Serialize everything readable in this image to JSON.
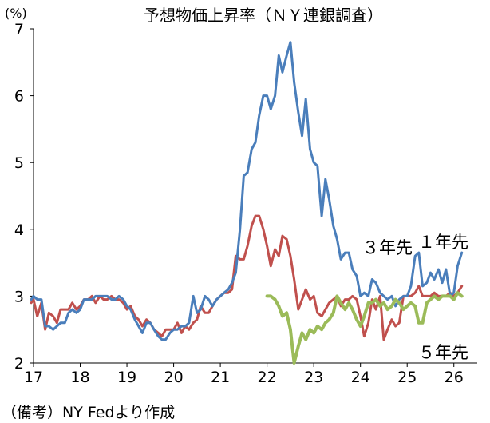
{
  "chart_data": {
    "type": "line",
    "title": "予想物価上昇率（ＮＹ連銀調査）",
    "y_unit": "(%)",
    "ylim": [
      2,
      7
    ],
    "y_ticks": [
      2,
      3,
      4,
      5,
      6,
      7
    ],
    "xlim": [
      2017.0,
      2026.5
    ],
    "x_ticks": [
      {
        "label": "17",
        "x": 2017.0
      },
      {
        "label": "18",
        "x": 2018.0
      },
      {
        "label": "19",
        "x": 2019.0
      },
      {
        "label": "20",
        "x": 2020.0
      },
      {
        "label": "21",
        "x": 2021.0
      },
      {
        "label": "22",
        "x": 2022.0
      },
      {
        "label": "23",
        "x": 2023.0
      },
      {
        "label": "24",
        "x": 2024.0
      },
      {
        "label": "25",
        "x": 2025.0
      },
      {
        "label": "26",
        "x": 2026.0
      }
    ],
    "grid": false,
    "legend": "inline labels next to each series",
    "series": [
      {
        "name": "１年先",
        "color": "#4a7ebb",
        "points": [
          [
            2016.95,
            2.95
          ],
          [
            2017.0,
            3.0
          ],
          [
            2017.08,
            2.95
          ],
          [
            2017.17,
            2.95
          ],
          [
            2017.25,
            2.55
          ],
          [
            2017.33,
            2.55
          ],
          [
            2017.42,
            2.5
          ],
          [
            2017.5,
            2.55
          ],
          [
            2017.58,
            2.6
          ],
          [
            2017.67,
            2.6
          ],
          [
            2017.75,
            2.75
          ],
          [
            2017.83,
            2.8
          ],
          [
            2017.92,
            2.75
          ],
          [
            2018.0,
            2.8
          ],
          [
            2018.08,
            2.95
          ],
          [
            2018.17,
            2.95
          ],
          [
            2018.25,
            2.95
          ],
          [
            2018.33,
            3.0
          ],
          [
            2018.42,
            3.0
          ],
          [
            2018.5,
            3.0
          ],
          [
            2018.58,
            3.0
          ],
          [
            2018.67,
            2.95
          ],
          [
            2018.75,
            2.95
          ],
          [
            2018.83,
            3.0
          ],
          [
            2018.92,
            2.95
          ],
          [
            2019.0,
            2.85
          ],
          [
            2019.08,
            2.8
          ],
          [
            2019.17,
            2.65
          ],
          [
            2019.25,
            2.55
          ],
          [
            2019.33,
            2.45
          ],
          [
            2019.42,
            2.6
          ],
          [
            2019.5,
            2.6
          ],
          [
            2019.58,
            2.5
          ],
          [
            2019.67,
            2.4
          ],
          [
            2019.75,
            2.35
          ],
          [
            2019.83,
            2.35
          ],
          [
            2019.92,
            2.45
          ],
          [
            2020.0,
            2.5
          ],
          [
            2020.08,
            2.5
          ],
          [
            2020.17,
            2.55
          ],
          [
            2020.25,
            2.55
          ],
          [
            2020.33,
            2.6
          ],
          [
            2020.42,
            3.0
          ],
          [
            2020.5,
            2.75
          ],
          [
            2020.58,
            2.8
          ],
          [
            2020.67,
            3.0
          ],
          [
            2020.75,
            2.95
          ],
          [
            2020.83,
            2.85
          ],
          [
            2020.92,
            2.95
          ],
          [
            2021.0,
            3.0
          ],
          [
            2021.08,
            3.05
          ],
          [
            2021.17,
            3.1
          ],
          [
            2021.25,
            3.2
          ],
          [
            2021.33,
            3.35
          ],
          [
            2021.42,
            4.0
          ],
          [
            2021.5,
            4.8
          ],
          [
            2021.58,
            4.85
          ],
          [
            2021.67,
            5.2
          ],
          [
            2021.75,
            5.3
          ],
          [
            2021.83,
            5.7
          ],
          [
            2021.92,
            6.0
          ],
          [
            2022.0,
            6.0
          ],
          [
            2022.08,
            5.8
          ],
          [
            2022.17,
            6.0
          ],
          [
            2022.25,
            6.6
          ],
          [
            2022.33,
            6.35
          ],
          [
            2022.42,
            6.6
          ],
          [
            2022.5,
            6.8
          ],
          [
            2022.58,
            6.2
          ],
          [
            2022.67,
            5.75
          ],
          [
            2022.75,
            5.4
          ],
          [
            2022.83,
            5.95
          ],
          [
            2022.92,
            5.2
          ],
          [
            2023.0,
            5.0
          ],
          [
            2023.08,
            4.95
          ],
          [
            2023.17,
            4.2
          ],
          [
            2023.25,
            4.75
          ],
          [
            2023.33,
            4.45
          ],
          [
            2023.42,
            4.05
          ],
          [
            2023.5,
            3.85
          ],
          [
            2023.58,
            3.55
          ],
          [
            2023.67,
            3.65
          ],
          [
            2023.75,
            3.65
          ],
          [
            2023.83,
            3.4
          ],
          [
            2023.92,
            3.3
          ],
          [
            2024.0,
            3.0
          ],
          [
            2024.08,
            3.05
          ],
          [
            2024.17,
            3.0
          ],
          [
            2024.25,
            3.25
          ],
          [
            2024.33,
            3.2
          ],
          [
            2024.42,
            3.05
          ],
          [
            2024.5,
            3.0
          ],
          [
            2024.58,
            2.95
          ],
          [
            2024.67,
            3.0
          ],
          [
            2024.75,
            2.85
          ],
          [
            2024.83,
            2.95
          ],
          [
            2024.92,
            3.0
          ],
          [
            2025.0,
            3.0
          ],
          [
            2025.08,
            3.15
          ],
          [
            2025.17,
            3.6
          ],
          [
            2025.25,
            3.65
          ],
          [
            2025.33,
            3.15
          ],
          [
            2025.42,
            3.2
          ],
          [
            2025.5,
            3.35
          ],
          [
            2025.58,
            3.25
          ],
          [
            2025.67,
            3.4
          ],
          [
            2025.75,
            3.2
          ],
          [
            2025.83,
            3.4
          ],
          [
            2025.92,
            3.0
          ],
          [
            2026.0,
            3.05
          ],
          [
            2026.08,
            3.45
          ],
          [
            2026.17,
            3.65
          ]
        ]
      },
      {
        "name": "３年先",
        "color": "#c0504d",
        "points": [
          [
            2016.95,
            2.9
          ],
          [
            2017.0,
            2.95
          ],
          [
            2017.08,
            2.7
          ],
          [
            2017.17,
            2.9
          ],
          [
            2017.25,
            2.5
          ],
          [
            2017.33,
            2.75
          ],
          [
            2017.42,
            2.7
          ],
          [
            2017.5,
            2.6
          ],
          [
            2017.58,
            2.8
          ],
          [
            2017.67,
            2.8
          ],
          [
            2017.75,
            2.8
          ],
          [
            2017.83,
            2.9
          ],
          [
            2017.92,
            2.8
          ],
          [
            2018.0,
            2.85
          ],
          [
            2018.08,
            2.95
          ],
          [
            2018.17,
            2.95
          ],
          [
            2018.25,
            3.0
          ],
          [
            2018.33,
            2.9
          ],
          [
            2018.42,
            3.0
          ],
          [
            2018.5,
            2.95
          ],
          [
            2018.58,
            2.95
          ],
          [
            2018.67,
            3.0
          ],
          [
            2018.75,
            2.95
          ],
          [
            2018.83,
            2.95
          ],
          [
            2018.92,
            2.9
          ],
          [
            2019.0,
            2.8
          ],
          [
            2019.08,
            2.85
          ],
          [
            2019.17,
            2.7
          ],
          [
            2019.25,
            2.65
          ],
          [
            2019.33,
            2.55
          ],
          [
            2019.42,
            2.65
          ],
          [
            2019.5,
            2.6
          ],
          [
            2019.58,
            2.5
          ],
          [
            2019.67,
            2.45
          ],
          [
            2019.75,
            2.4
          ],
          [
            2019.83,
            2.5
          ],
          [
            2019.92,
            2.5
          ],
          [
            2020.0,
            2.5
          ],
          [
            2020.08,
            2.6
          ],
          [
            2020.17,
            2.45
          ],
          [
            2020.25,
            2.55
          ],
          [
            2020.33,
            2.5
          ],
          [
            2020.42,
            2.6
          ],
          [
            2020.5,
            2.65
          ],
          [
            2020.58,
            2.85
          ],
          [
            2020.67,
            2.75
          ],
          [
            2020.75,
            2.75
          ],
          [
            2020.83,
            2.85
          ],
          [
            2020.92,
            2.95
          ],
          [
            2021.0,
            3.0
          ],
          [
            2021.08,
            3.05
          ],
          [
            2021.17,
            3.05
          ],
          [
            2021.25,
            3.1
          ],
          [
            2021.33,
            3.6
          ],
          [
            2021.42,
            3.55
          ],
          [
            2021.5,
            3.55
          ],
          [
            2021.58,
            3.75
          ],
          [
            2021.67,
            4.05
          ],
          [
            2021.75,
            4.2
          ],
          [
            2021.83,
            4.2
          ],
          [
            2021.92,
            4.0
          ],
          [
            2022.0,
            3.75
          ],
          [
            2022.08,
            3.45
          ],
          [
            2022.17,
            3.7
          ],
          [
            2022.25,
            3.6
          ],
          [
            2022.33,
            3.9
          ],
          [
            2022.42,
            3.85
          ],
          [
            2022.5,
            3.6
          ],
          [
            2022.58,
            3.25
          ],
          [
            2022.67,
            2.8
          ],
          [
            2022.75,
            2.95
          ],
          [
            2022.83,
            3.1
          ],
          [
            2022.92,
            2.95
          ],
          [
            2023.0,
            3.0
          ],
          [
            2023.08,
            2.75
          ],
          [
            2023.17,
            2.7
          ],
          [
            2023.25,
            2.8
          ],
          [
            2023.33,
            2.9
          ],
          [
            2023.42,
            2.95
          ],
          [
            2023.5,
            3.0
          ],
          [
            2023.58,
            2.85
          ],
          [
            2023.67,
            2.95
          ],
          [
            2023.75,
            2.95
          ],
          [
            2023.83,
            3.0
          ],
          [
            2023.92,
            2.95
          ],
          [
            2024.0,
            2.7
          ],
          [
            2024.08,
            2.4
          ],
          [
            2024.17,
            2.6
          ],
          [
            2024.25,
            2.95
          ],
          [
            2024.33,
            2.8
          ],
          [
            2024.42,
            3.0
          ],
          [
            2024.5,
            2.35
          ],
          [
            2024.58,
            2.5
          ],
          [
            2024.67,
            2.65
          ],
          [
            2024.75,
            2.55
          ],
          [
            2024.83,
            2.6
          ],
          [
            2024.92,
            3.0
          ],
          [
            2025.0,
            3.0
          ],
          [
            2025.08,
            3.0
          ],
          [
            2025.17,
            3.05
          ],
          [
            2025.25,
            3.15
          ],
          [
            2025.33,
            3.0
          ],
          [
            2025.42,
            3.0
          ],
          [
            2025.5,
            3.0
          ],
          [
            2025.58,
            3.05
          ],
          [
            2025.67,
            3.0
          ],
          [
            2025.75,
            3.0
          ],
          [
            2025.83,
            3.0
          ],
          [
            2025.92,
            3.05
          ],
          [
            2026.0,
            3.0
          ],
          [
            2026.08,
            3.05
          ],
          [
            2026.17,
            3.15
          ]
        ]
      },
      {
        "name": "５年先",
        "color": "#9bbb59",
        "points": [
          [
            2022.0,
            3.0
          ],
          [
            2022.08,
            3.0
          ],
          [
            2022.17,
            2.95
          ],
          [
            2022.25,
            2.85
          ],
          [
            2022.33,
            2.7
          ],
          [
            2022.42,
            2.75
          ],
          [
            2022.5,
            2.5
          ],
          [
            2022.58,
            2.0
          ],
          [
            2022.67,
            2.25
          ],
          [
            2022.75,
            2.45
          ],
          [
            2022.83,
            2.35
          ],
          [
            2022.92,
            2.5
          ],
          [
            2023.0,
            2.45
          ],
          [
            2023.08,
            2.55
          ],
          [
            2023.17,
            2.5
          ],
          [
            2023.25,
            2.6
          ],
          [
            2023.33,
            2.65
          ],
          [
            2023.42,
            2.75
          ],
          [
            2023.5,
            3.0
          ],
          [
            2023.58,
            2.9
          ],
          [
            2023.67,
            2.8
          ],
          [
            2023.75,
            2.9
          ],
          [
            2023.83,
            2.8
          ],
          [
            2023.92,
            2.65
          ],
          [
            2024.0,
            2.55
          ],
          [
            2024.08,
            2.7
          ],
          [
            2024.17,
            2.9
          ],
          [
            2024.25,
            2.9
          ],
          [
            2024.33,
            2.95
          ],
          [
            2024.42,
            2.85
          ],
          [
            2024.5,
            2.9
          ],
          [
            2024.58,
            2.8
          ],
          [
            2024.67,
            2.85
          ],
          [
            2024.75,
            2.95
          ],
          [
            2024.83,
            2.9
          ],
          [
            2024.92,
            2.8
          ],
          [
            2025.0,
            2.85
          ],
          [
            2025.08,
            2.9
          ],
          [
            2025.17,
            2.85
          ],
          [
            2025.25,
            2.6
          ],
          [
            2025.33,
            2.6
          ],
          [
            2025.42,
            2.9
          ],
          [
            2025.5,
            2.95
          ],
          [
            2025.58,
            3.0
          ],
          [
            2025.67,
            2.95
          ],
          [
            2025.75,
            3.0
          ],
          [
            2025.83,
            3.0
          ],
          [
            2025.92,
            3.0
          ],
          [
            2026.0,
            2.95
          ],
          [
            2026.08,
            3.05
          ],
          [
            2026.17,
            3.0
          ]
        ]
      }
    ],
    "series_labels": [
      "１年先",
      "３年先",
      "５年先"
    ]
  },
  "footnote": "（備考）NY Fedより作成"
}
